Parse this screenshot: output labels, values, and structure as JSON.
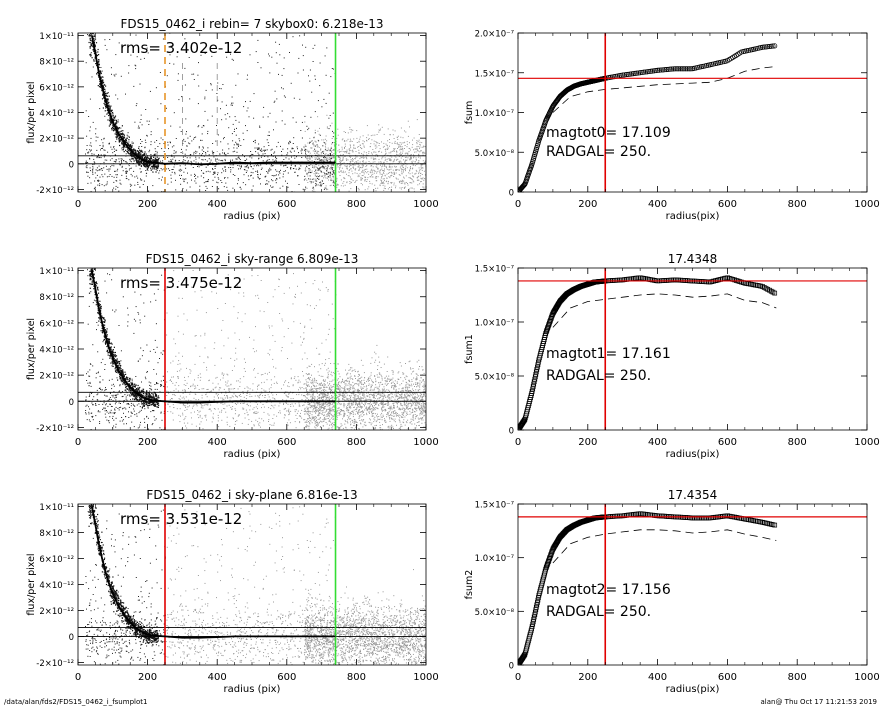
{
  "footer": {
    "path": "/data/alan/fds2/FDS15_0462_i_fsumplot1",
    "stamp": "alan@  Thu Oct 17 11:21:53 2019"
  },
  "colors": {
    "points_dark": "#222222",
    "points_gray": "#9a9a9a",
    "profile": "#000000",
    "orange_marker": "#e8962a",
    "red_marker": "#e00000",
    "green_marker": "#33dd33",
    "frame": "#000000"
  },
  "chart_data": [
    {
      "type": "scatter",
      "id": "flux-profile-1",
      "title": "FDS15_0462_i rebin= 7    skybox0:  6.218e-13",
      "annotation": "rms= 3.402e-12",
      "xlabel": "radius (pix)",
      "ylabel": "flux/per pixel",
      "xlim": [
        0,
        1000
      ],
      "ylim": [
        -2.2e-12,
        1.02e-11
      ],
      "xticks": [
        "0",
        "200",
        "400",
        "600",
        "800",
        "1000"
      ],
      "yticks": [
        "-2×10⁻¹²",
        "0",
        "2×10⁻¹²",
        "4×10⁻¹²",
        "6×10⁻¹²",
        "8×10⁻¹²",
        "1×10⁻¹¹"
      ],
      "ytick_values": [
        -2e-12,
        0,
        2e-12,
        4e-12,
        6e-12,
        8e-12,
        1e-11
      ],
      "hlines": [
        0,
        6.218e-13
      ],
      "vlines": [
        {
          "x": 250,
          "color": "orange",
          "style": "dashed"
        },
        {
          "x": 300,
          "color": "gray",
          "style": "dashed"
        },
        {
          "x": 400,
          "color": "gray",
          "style": "dashed"
        },
        {
          "x": 740,
          "color": "green",
          "style": "solid"
        }
      ],
      "profile": {
        "x": [
          40,
          50,
          60,
          70,
          80,
          90,
          100,
          110,
          120,
          130,
          140,
          150,
          160,
          170,
          180,
          190,
          200,
          220,
          250,
          300,
          350,
          400,
          450,
          500,
          550,
          600,
          650,
          700,
          740
        ],
        "y": [
          1e-11,
          8.6e-12,
          7.1e-12,
          5.9e-12,
          4.9e-12,
          4e-12,
          3.3e-12,
          2.7e-12,
          2.2e-12,
          1.8e-12,
          1.4e-12,
          1.1e-12,
          8e-13,
          6e-13,
          4e-13,
          2.5e-13,
          1.5e-13,
          1e-13,
          0.0,
          5e-14,
          -5e-14,
          0.0,
          1e-13,
          5e-14,
          1e-13,
          1e-13,
          1e-13,
          1e-13,
          1e-13
        ]
      }
    },
    {
      "type": "line",
      "id": "growth-curve-1",
      "title": "",
      "annotations": [
        "magtot0=  17.109",
        "RADGAL=    250."
      ],
      "xlabel": "radius(pix)",
      "ylabel": "fsum",
      "xlim": [
        0,
        1000
      ],
      "ylim": [
        0,
        2e-07
      ],
      "xticks": [
        "0",
        "200",
        "400",
        "600",
        "800",
        "1000"
      ],
      "yticks": [
        "0",
        "5.0×10⁻⁸",
        "1.0×10⁻⁷",
        "1.5×10⁻⁷",
        "2.0×10⁻⁷"
      ],
      "ytick_values": [
        0,
        5e-08,
        1e-07,
        1.5e-07,
        2e-07
      ],
      "hline": 1.43e-07,
      "vline": 250,
      "series": [
        {
          "style": "circles",
          "x": [
            0,
            20,
            40,
            60,
            80,
            100,
            120,
            140,
            160,
            180,
            200,
            220,
            250,
            300,
            350,
            400,
            450,
            500,
            550,
            600,
            640,
            700,
            740
          ],
          "y": [
            0,
            1e-08,
            3.5e-08,
            6.5e-08,
            9e-08,
            1.08e-07,
            1.2e-07,
            1.28e-07,
            1.33e-07,
            1.36e-07,
            1.38e-07,
            1.4e-07,
            1.43e-07,
            1.47e-07,
            1.5e-07,
            1.53e-07,
            1.55e-07,
            1.55e-07,
            1.6e-07,
            1.65e-07,
            1.76e-07,
            1.82e-07,
            1.84e-07
          ]
        },
        {
          "style": "dashed",
          "x": [
            100,
            150,
            200,
            250,
            300,
            350,
            400,
            450,
            500,
            550,
            600,
            650,
            700,
            740
          ],
          "y": [
            1e-07,
            1.2e-07,
            1.26e-07,
            1.29e-07,
            1.31e-07,
            1.33e-07,
            1.35e-07,
            1.36e-07,
            1.37e-07,
            1.38e-07,
            1.43e-07,
            1.52e-07,
            1.56e-07,
            1.58e-07
          ]
        }
      ]
    },
    {
      "type": "scatter",
      "id": "flux-profile-2",
      "title": "FDS15_0462_i sky-range  6.809e-13",
      "annotation": "rms= 3.475e-12",
      "xlabel": "radius (pix)",
      "ylabel": "flux/per pixel",
      "xlim": [
        0,
        1000
      ],
      "ylim": [
        -2.2e-12,
        1.02e-11
      ],
      "xticks": [
        "0",
        "200",
        "400",
        "600",
        "800",
        "1000"
      ],
      "yticks": [
        "-2×10⁻¹²",
        "0",
        "2×10⁻¹²",
        "4×10⁻¹²",
        "6×10⁻¹²",
        "8×10⁻¹²",
        "1×10⁻¹¹"
      ],
      "ytick_values": [
        -2e-12,
        0,
        2e-12,
        4e-12,
        6e-12,
        8e-12,
        1e-11
      ],
      "hlines": [
        0,
        6.809e-13
      ],
      "vlines": [
        {
          "x": 250,
          "color": "red",
          "style": "solid"
        },
        {
          "x": 740,
          "color": "green",
          "style": "solid"
        }
      ],
      "profile": {
        "x": [
          40,
          50,
          60,
          70,
          80,
          90,
          100,
          110,
          120,
          130,
          140,
          150,
          160,
          170,
          180,
          190,
          200,
          220,
          250,
          300,
          350,
          400,
          450,
          500,
          550,
          600,
          650,
          700,
          740
        ],
        "y": [
          1e-11,
          8.6e-12,
          7.1e-12,
          5.9e-12,
          4.9e-12,
          4e-12,
          3.3e-12,
          2.7e-12,
          2.2e-12,
          1.8e-12,
          1.4e-12,
          1.1e-12,
          8e-13,
          6e-13,
          4e-13,
          2.5e-13,
          1.5e-13,
          5e-14,
          0.0,
          -1e-13,
          -1e-13,
          -5e-14,
          0.0,
          0.0,
          0.0,
          0.0,
          0.0,
          0.0,
          0.0
        ]
      }
    },
    {
      "type": "line",
      "id": "growth-curve-2",
      "title": "17.4348",
      "annotations": [
        "magtot1=  17.161",
        "RADGAL=    250."
      ],
      "xlabel": "radius(pix)",
      "ylabel": "fsum1",
      "xlim": [
        0,
        1000
      ],
      "ylim": [
        0,
        1.5e-07
      ],
      "xticks": [
        "0",
        "200",
        "400",
        "600",
        "800",
        "1000"
      ],
      "yticks": [
        "0",
        "5.0×10⁻⁸",
        "1.0×10⁻⁷",
        "1.5×10⁻⁷"
      ],
      "ytick_values": [
        0,
        5e-08,
        1e-07,
        1.5e-07
      ],
      "hline": 1.38e-07,
      "vline": 250,
      "series": [
        {
          "style": "squares",
          "x": [
            0,
            20,
            40,
            60,
            80,
            100,
            120,
            140,
            160,
            180,
            200,
            220,
            250,
            300,
            350,
            400,
            450,
            500,
            550,
            600,
            650,
            700,
            740
          ],
          "y": [
            0,
            1e-08,
            3.5e-08,
            6.5e-08,
            9e-08,
            1.08e-07,
            1.19e-07,
            1.26e-07,
            1.3e-07,
            1.33e-07,
            1.35e-07,
            1.37e-07,
            1.38e-07,
            1.39e-07,
            1.41e-07,
            1.38e-07,
            1.39e-07,
            1.38e-07,
            1.37e-07,
            1.41e-07,
            1.36e-07,
            1.33e-07,
            1.26e-07
          ]
        },
        {
          "style": "dashed",
          "x": [
            100,
            150,
            200,
            250,
            300,
            350,
            400,
            450,
            500,
            550,
            600,
            650,
            700,
            740
          ],
          "y": [
            9.5e-08,
            1.13e-07,
            1.19e-07,
            1.21e-07,
            1.23e-07,
            1.25e-07,
            1.26e-07,
            1.25e-07,
            1.23e-07,
            1.24e-07,
            1.26e-07,
            1.2e-07,
            1.18e-07,
            1.13e-07
          ]
        }
      ]
    },
    {
      "type": "scatter",
      "id": "flux-profile-3",
      "title": "FDS15_0462_i sky-plane  6.816e-13",
      "annotation": "rms= 3.531e-12",
      "xlabel": "radius (pix)",
      "ylabel": "flux/per pixel",
      "xlim": [
        0,
        1000
      ],
      "ylim": [
        -2.2e-12,
        1.02e-11
      ],
      "xticks": [
        "0",
        "200",
        "400",
        "600",
        "800",
        "1000"
      ],
      "yticks": [
        "-2×10⁻¹²",
        "0",
        "2×10⁻¹²",
        "4×10⁻¹²",
        "6×10⁻¹²",
        "8×10⁻¹²",
        "1×10⁻¹¹"
      ],
      "ytick_values": [
        -2e-12,
        0,
        2e-12,
        4e-12,
        6e-12,
        8e-12,
        1e-11
      ],
      "hlines": [
        0,
        6.816e-13
      ],
      "vlines": [
        {
          "x": 250,
          "color": "red",
          "style": "solid"
        },
        {
          "x": 740,
          "color": "green",
          "style": "solid"
        }
      ],
      "profile": {
        "x": [
          40,
          50,
          60,
          70,
          80,
          90,
          100,
          110,
          120,
          130,
          140,
          150,
          160,
          170,
          180,
          190,
          200,
          220,
          250,
          300,
          350,
          400,
          450,
          500,
          550,
          600,
          650,
          700,
          740
        ],
        "y": [
          1e-11,
          8.6e-12,
          7.1e-12,
          5.9e-12,
          4.9e-12,
          4e-12,
          3.3e-12,
          2.7e-12,
          2.2e-12,
          1.8e-12,
          1.4e-12,
          1.1e-12,
          8e-13,
          6e-13,
          4e-13,
          2.5e-13,
          1.5e-13,
          5e-14,
          0.0,
          -1e-13,
          -1e-13,
          -5e-14,
          0.0,
          0.0,
          0.0,
          0.0,
          0.0,
          0.0,
          0.0
        ]
      }
    },
    {
      "type": "line",
      "id": "growth-curve-3",
      "title": "17.4354",
      "annotations": [
        "magtot2=  17.156",
        "RADGAL=    250."
      ],
      "xlabel": "radius(pix)",
      "ylabel": "fsum2",
      "xlim": [
        0,
        1000
      ],
      "ylim": [
        0,
        1.5e-07
      ],
      "xticks": [
        "0",
        "200",
        "400",
        "600",
        "800",
        "1000"
      ],
      "yticks": [
        "0",
        "5.0×10⁻⁸",
        "1.0×10⁻⁷",
        "1.5×10⁻⁷"
      ],
      "ytick_values": [
        0,
        5e-08,
        1e-07,
        1.5e-07
      ],
      "hline": 1.38e-07,
      "vline": 250,
      "series": [
        {
          "style": "squares",
          "x": [
            0,
            20,
            40,
            60,
            80,
            100,
            120,
            140,
            160,
            180,
            200,
            220,
            250,
            300,
            350,
            400,
            450,
            500,
            550,
            600,
            650,
            700,
            740
          ],
          "y": [
            0,
            1e-08,
            3.5e-08,
            6.5e-08,
            9e-08,
            1.08e-07,
            1.19e-07,
            1.26e-07,
            1.3e-07,
            1.33e-07,
            1.35e-07,
            1.37e-07,
            1.38e-07,
            1.39e-07,
            1.41e-07,
            1.39e-07,
            1.38e-07,
            1.37e-07,
            1.37e-07,
            1.39e-07,
            1.36e-07,
            1.33e-07,
            1.3e-07
          ]
        },
        {
          "style": "dashed",
          "x": [
            100,
            150,
            200,
            250,
            300,
            350,
            400,
            450,
            500,
            550,
            600,
            650,
            700,
            740
          ],
          "y": [
            9.5e-08,
            1.13e-07,
            1.19e-07,
            1.22e-07,
            1.24e-07,
            1.26e-07,
            1.26e-07,
            1.25e-07,
            1.23e-07,
            1.24e-07,
            1.26e-07,
            1.22e-07,
            1.19e-07,
            1.16e-07
          ]
        }
      ]
    }
  ]
}
